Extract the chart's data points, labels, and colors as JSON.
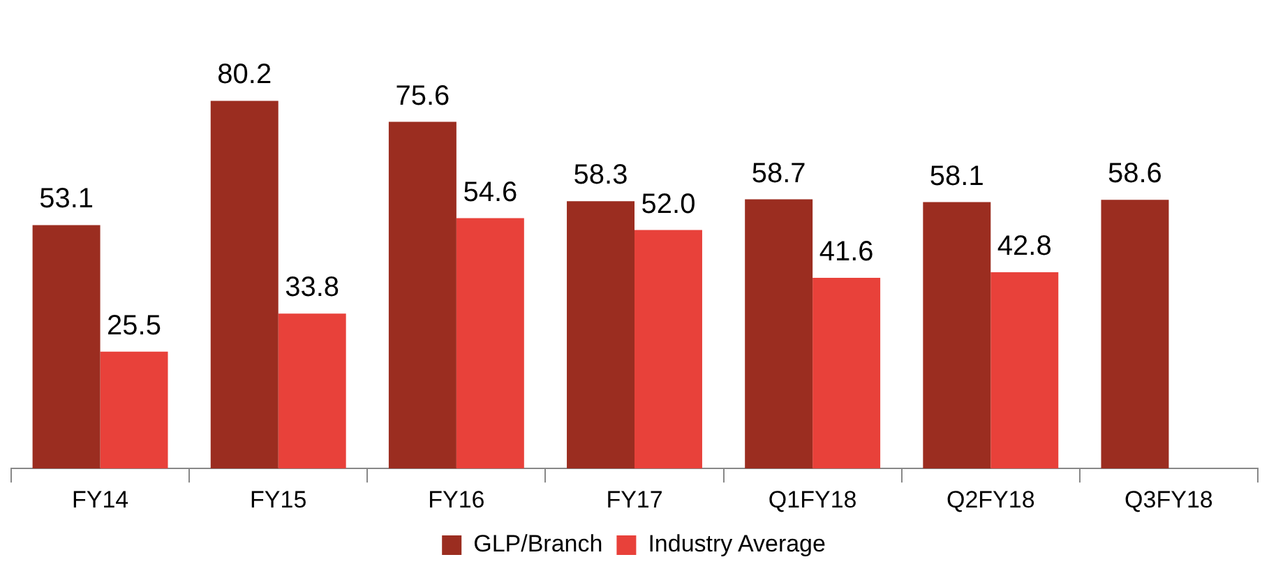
{
  "chart_data": {
    "type": "bar",
    "categories": [
      "FY14",
      "FY15",
      "FY16",
      "FY17",
      "Q1FY18",
      "Q2FY18",
      "Q3FY18"
    ],
    "series": [
      {
        "name": "GLP/Branch",
        "color": "#9b2d20",
        "values": [
          53.1,
          80.2,
          75.6,
          58.3,
          58.7,
          58.1,
          58.6
        ],
        "value_labels": [
          "53.1",
          "80.2",
          "75.6",
          "58.3",
          "58.7",
          "58.1",
          "58.6"
        ]
      },
      {
        "name": "Industry Average",
        "color": "#e8413a",
        "values": [
          25.5,
          33.8,
          54.6,
          52.0,
          41.6,
          42.8,
          null
        ],
        "value_labels": [
          "25.5",
          "33.8",
          "54.6",
          "52.0",
          "41.6",
          "42.8",
          null
        ]
      }
    ],
    "legend": "bottom",
    "grid": false
  }
}
